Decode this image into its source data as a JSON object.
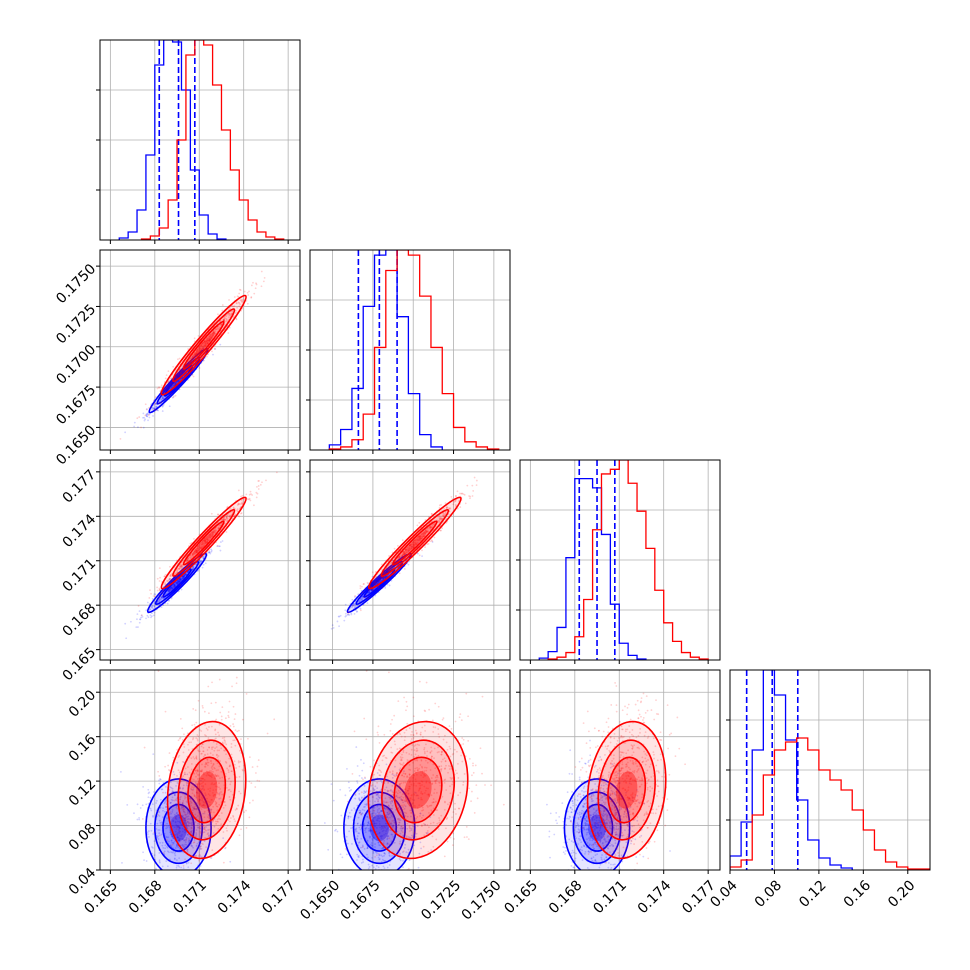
{
  "colors": {
    "series_a": "#0000ff",
    "series_b": "#ff0000",
    "grid": "#b0b0b0"
  },
  "chart_data": {
    "type": "corner",
    "title": "",
    "grid": true,
    "legend": "none",
    "parameters": [
      {
        "range": [
          0.1643,
          0.1778
        ],
        "ticks": [
          "0.165",
          "0.168",
          "0.171",
          "0.174",
          "0.177"
        ]
      },
      {
        "range": [
          0.1636,
          0.176
        ],
        "ticks": [
          "0.1650",
          "0.1675",
          "0.1700",
          "0.1725",
          "0.1750"
        ]
      },
      {
        "range": [
          0.1643,
          0.1778
        ],
        "ticks": [
          "0.165",
          "0.168",
          "0.171",
          "0.174",
          "0.177"
        ]
      },
      {
        "range": [
          0.04,
          0.22
        ],
        "ticks": [
          "0.04",
          "0.08",
          "0.12",
          "0.16",
          "0.20"
        ]
      }
    ],
    "series": [
      {
        "color": "#0000ff",
        "quantiles": [
          [
            0.1683,
            0.1696,
            0.1707
          ],
          [
            0.1666,
            0.1679,
            0.169
          ],
          [
            0.1683,
            0.1695,
            0.1707
          ],
          [
            0.055,
            0.078,
            0.101
          ]
        ],
        "hist": [
          {
            "edges": [
              0.1656,
              0.1662,
              0.1668,
              0.1674,
              0.168,
              0.1686,
              0.1692,
              0.1698,
              0.1704,
              0.171,
              0.1716,
              0.1722,
              0.1728
            ],
            "counts": [
              2,
              8,
              30,
              85,
              175,
              200,
              198,
              150,
              70,
              25,
              6,
              1
            ]
          },
          {
            "edges": [
              0.1648,
              0.1655,
              0.1662,
              0.1669,
              0.1676,
              0.1683,
              0.169,
              0.1697,
              0.1704,
              0.1711,
              0.1718
            ],
            "counts": [
              5,
              20,
              60,
              140,
              190,
              195,
              130,
              55,
              15,
              3
            ]
          },
          {
            "edges": [
              0.1656,
              0.1662,
              0.1668,
              0.1674,
              0.168,
              0.1686,
              0.1692,
              0.1698,
              0.1704,
              0.171,
              0.1716,
              0.1722,
              0.1728
            ],
            "counts": [
              2,
              9,
              35,
              110,
              195,
              195,
              185,
              135,
              60,
              18,
              5,
              1
            ]
          },
          {
            "edges": [
              0.04,
              0.05,
              0.06,
              0.07,
              0.08,
              0.09,
              0.1,
              0.11,
              0.12,
              0.13,
              0.14,
              0.15
            ],
            "counts": [
              14,
              48,
              120,
              200,
              175,
              130,
              70,
              30,
              12,
              5,
              2
            ]
          }
        ],
        "pairs": [
          {
            "i": 1,
            "j": 0,
            "center": [
              0.1696,
              0.1679
            ],
            "sd": [
              0.0009,
              0.0009
            ],
            "rho": 0.97
          },
          {
            "i": 2,
            "j": 0,
            "center": [
              0.1695,
              0.1695
            ],
            "sd": [
              0.0009,
              0.0009
            ],
            "rho": 0.96
          },
          {
            "i": 2,
            "j": 1,
            "center": [
              0.1679,
              0.1695
            ],
            "sd": [
              0.0009,
              0.0009
            ],
            "rho": 0.97
          },
          {
            "i": 3,
            "j": 0,
            "center": [
              0.1696,
              0.078
            ],
            "sd": [
              0.001,
              0.02
            ],
            "rho": 0.0
          },
          {
            "i": 3,
            "j": 1,
            "center": [
              0.1679,
              0.078
            ],
            "sd": [
              0.001,
              0.02
            ],
            "rho": 0.0
          },
          {
            "i": 3,
            "j": 2,
            "center": [
              0.1695,
              0.078
            ],
            "sd": [
              0.001,
              0.02
            ],
            "rho": 0.0
          }
        ]
      },
      {
        "color": "#ff0000",
        "hist": [
          {
            "edges": [
              0.1671,
              0.1677,
              0.1683,
              0.1689,
              0.1695,
              0.1701,
              0.1707,
              0.1713,
              0.1719,
              0.1725,
              0.1731,
              0.1737,
              0.1743,
              0.1749,
              0.1755,
              0.1761,
              0.1767
            ],
            "counts": [
              1,
              4,
              12,
              40,
              100,
              185,
              200,
              195,
              155,
              110,
              70,
              40,
              20,
              8,
              3,
              1
            ]
          },
          {
            "edges": [
              0.1648,
              0.1655,
              0.1662,
              0.1669,
              0.1676,
              0.1683,
              0.169,
              0.1697,
              0.1704,
              0.1711,
              0.1718,
              0.1725,
              0.1732,
              0.1739,
              0.1746,
              0.1753
            ],
            "counts": [
              1,
              3,
              10,
              35,
              100,
              175,
              195,
              190,
              150,
              100,
              55,
              22,
              8,
              3,
              1
            ]
          },
          {
            "edges": [
              0.1662,
              0.1668,
              0.1674,
              0.168,
              0.1686,
              0.1692,
              0.1698,
              0.1704,
              0.171,
              0.1716,
              0.1722,
              0.1728,
              0.1734,
              0.174,
              0.1746,
              0.1752,
              0.1758,
              0.1764,
              0.177
            ],
            "counts": [
              1,
              3,
              8,
              25,
              65,
              140,
              200,
              205,
              215,
              190,
              160,
              120,
              75,
              40,
              20,
              8,
              3,
              1
            ]
          },
          {
            "edges": [
              0.04,
              0.05,
              0.06,
              0.07,
              0.08,
              0.09,
              0.1,
              0.11,
              0.12,
              0.13,
              0.14,
              0.15,
              0.16,
              0.17,
              0.18,
              0.19,
              0.2,
              0.21,
              0.22
            ],
            "counts": [
              3,
              10,
              55,
              95,
              120,
              128,
              132,
              120,
              100,
              90,
              80,
              60,
              40,
              20,
              8,
              3,
              1,
              1
            ]
          }
        ],
        "pairs": [
          {
            "i": 1,
            "j": 0,
            "center": [
              0.1713,
              0.1701
            ],
            "sd": [
              0.0013,
              0.0014
            ],
            "rho": 0.97
          },
          {
            "i": 2,
            "j": 0,
            "center": [
              0.1713,
              0.1722
            ],
            "sd": [
              0.0013,
              0.0014
            ],
            "rho": 0.97
          },
          {
            "i": 2,
            "j": 1,
            "center": [
              0.1701,
              0.1722
            ],
            "sd": [
              0.0013,
              0.0014
            ],
            "rho": 0.97
          },
          {
            "i": 3,
            "j": 0,
            "center": [
              0.1715,
              0.112
            ],
            "sd": [
              0.0012,
              0.028
            ],
            "rho": 0.15
          },
          {
            "i": 3,
            "j": 1,
            "center": [
              0.1703,
              0.112
            ],
            "sd": [
              0.0014,
              0.028
            ],
            "rho": 0.15
          },
          {
            "i": 3,
            "j": 2,
            "center": [
              0.1715,
              0.112
            ],
            "sd": [
              0.0012,
              0.028
            ],
            "rho": 0.15
          }
        ]
      }
    ]
  }
}
